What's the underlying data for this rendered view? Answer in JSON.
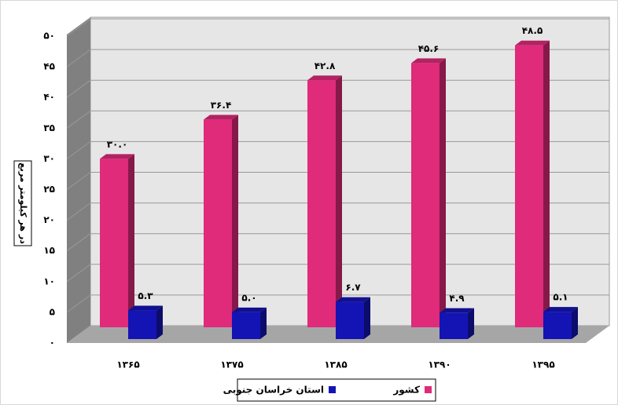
{
  "chart_data": {
    "type": "bar3d",
    "y_label": "در هر کیلومتر مربع",
    "categories": [
      "۱۳۶۵",
      "۱۳۷۵",
      "۱۳۸۵",
      "۱۳۹۰",
      "۱۳۹۵"
    ],
    "series": [
      {
        "name": "کشور",
        "color": "#e02a7a",
        "values": [
          30.0,
          36.4,
          42.8,
          45.6,
          48.5
        ],
        "value_labels": [
          "۳۰.۰",
          "۳۶.۴",
          "۴۲.۸",
          "۴۵.۶",
          "۴۸.۵"
        ]
      },
      {
        "name": "استان خراسان جنوبی",
        "color": "#1414b4",
        "values": [
          5.3,
          5.0,
          6.7,
          4.9,
          5.1
        ],
        "value_labels": [
          "۵.۳",
          "۵.۰",
          "۶.۷",
          "۴.۹",
          "۵.۱"
        ]
      }
    ],
    "ylim": [
      0,
      50
    ],
    "yticks": [
      {
        "value": 0,
        "label": "۰"
      },
      {
        "value": 5,
        "label": "۵"
      },
      {
        "value": 10,
        "label": "۱۰"
      },
      {
        "value": 15,
        "label": "۱۵"
      },
      {
        "value": 20,
        "label": "۲۰"
      },
      {
        "value": 25,
        "label": "۲۵"
      },
      {
        "value": 30,
        "label": "۳۰"
      },
      {
        "value": 35,
        "label": "۳۵"
      },
      {
        "value": 40,
        "label": "۴۰"
      },
      {
        "value": 45,
        "label": "۴۵"
      },
      {
        "value": 50,
        "label": "۵۰"
      }
    ],
    "grid": true
  }
}
